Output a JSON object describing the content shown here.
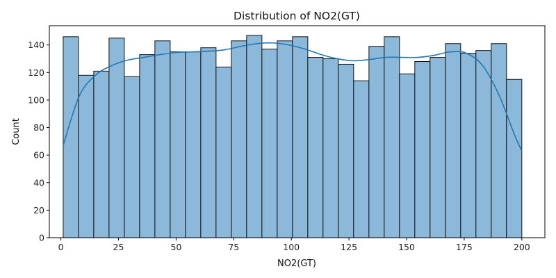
{
  "chart_data": {
    "type": "bar",
    "title": "Distribution of NO2(GT)",
    "xlabel": "NO2(GT)",
    "ylabel": "Count",
    "xlim": [
      -5,
      210
    ],
    "ylim": [
      0,
      154
    ],
    "x_ticks": [
      0,
      25,
      50,
      75,
      100,
      125,
      150,
      175,
      200
    ],
    "y_ticks": [
      0,
      20,
      40,
      60,
      80,
      100,
      120,
      140
    ],
    "bin_start": 1,
    "bin_width": 6.633,
    "counts": [
      146,
      118,
      121,
      145,
      117,
      133,
      143,
      135,
      135,
      138,
      124,
      143,
      147,
      137,
      143,
      146,
      131,
      130,
      126,
      114,
      139,
      146,
      119,
      128,
      131,
      141,
      134,
      136,
      141,
      115
    ],
    "kde": {
      "x": [
        1,
        8,
        15,
        22,
        29,
        36,
        43,
        50,
        57,
        64,
        71,
        78,
        85,
        92,
        99,
        106,
        113,
        120,
        127,
        134,
        141,
        148,
        155,
        162,
        169,
        176,
        183,
        190,
        197,
        200
      ],
      "y": [
        67,
        103,
        118,
        125,
        129,
        131,
        133,
        134.5,
        135,
        135.5,
        136.5,
        139,
        141,
        141.5,
        140,
        137,
        133,
        130,
        128.5,
        129.5,
        131,
        131,
        131,
        132.5,
        135,
        134,
        125,
        104,
        74,
        63
      ]
    },
    "grid": false,
    "colors": {
      "bar_fill": "#8cb9da",
      "bar_edge": "#111111",
      "kde_line": "#1f77b4",
      "axes": "#000000"
    }
  }
}
